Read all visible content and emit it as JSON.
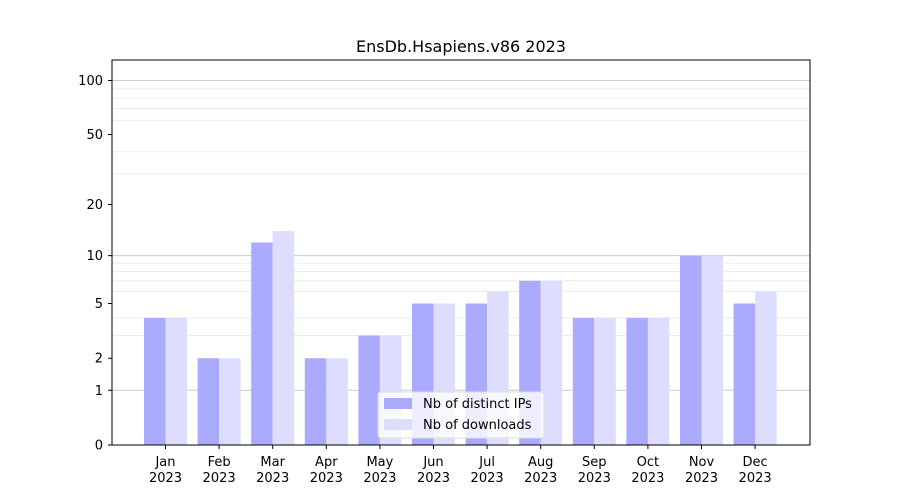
{
  "chart_data": {
    "type": "bar",
    "title": "EnsDb.Hsapiens.v86 2023",
    "xlabel": "",
    "ylabel": "",
    "yscale": "log1p",
    "ylim": [
      0,
      130
    ],
    "yticks": [
      0,
      1,
      2,
      5,
      10,
      20,
      50,
      100
    ],
    "grid": "y-minor",
    "legend_position": "bottom-center",
    "categories": [
      [
        "Jan",
        "2023"
      ],
      [
        "Feb",
        "2023"
      ],
      [
        "Mar",
        "2023"
      ],
      [
        "Apr",
        "2023"
      ],
      [
        "May",
        "2023"
      ],
      [
        "Jun",
        "2023"
      ],
      [
        "Jul",
        "2023"
      ],
      [
        "Aug",
        "2023"
      ],
      [
        "Sep",
        "2023"
      ],
      [
        "Oct",
        "2023"
      ],
      [
        "Nov",
        "2023"
      ],
      [
        "Dec",
        "2023"
      ]
    ],
    "series": [
      {
        "name": "Nb of distinct IPs",
        "color": "#aaaaff",
        "values": [
          4,
          2,
          12,
          2,
          3,
          5,
          5,
          7,
          4,
          4,
          10,
          5
        ]
      },
      {
        "name": "Nb of downloads",
        "color": "#ddddff",
        "values": [
          4,
          2,
          14,
          2,
          3,
          5,
          6,
          7,
          4,
          4,
          10,
          6
        ]
      }
    ]
  }
}
